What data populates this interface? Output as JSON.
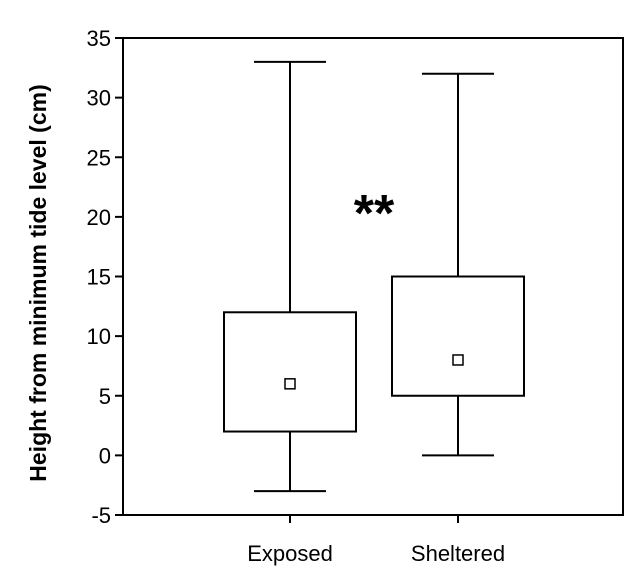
{
  "chart_data": {
    "type": "box",
    "title": "",
    "xlabel": "",
    "ylabel": "Height from minimum tide level (cm)",
    "ylim": [
      -5,
      35
    ],
    "yticks": [
      -5,
      0,
      5,
      10,
      15,
      20,
      25,
      30,
      35
    ],
    "grid": false,
    "categories": [
      "Exposed",
      "Sheltered"
    ],
    "boxes": [
      {
        "category": "Exposed",
        "whisker_low": -3,
        "q1": 2,
        "median": 6,
        "q3": 12,
        "whisker_high": 33
      },
      {
        "category": "Sheltered",
        "whisker_low": 0,
        "q1": 5,
        "median": 8,
        "q3": 15,
        "whisker_high": 32
      }
    ],
    "annotations": [
      {
        "text": "**",
        "between": [
          "Exposed",
          "Sheltered"
        ],
        "y": 20
      }
    ],
    "colors": {
      "line": "#000000",
      "box_fill": "#ffffff"
    }
  }
}
